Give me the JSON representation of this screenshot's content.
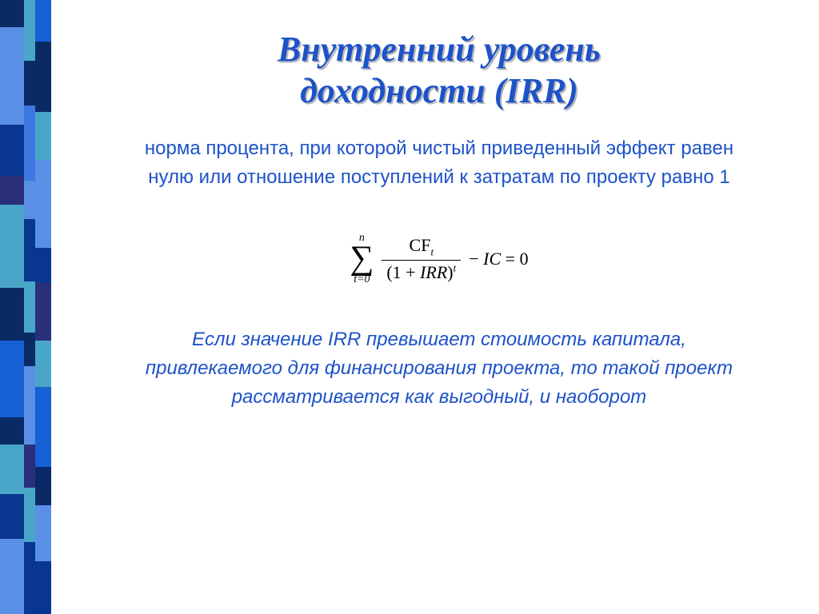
{
  "sidebar": {
    "columns": [
      {
        "width": 30,
        "blocks": [
          {
            "h": 34,
            "c": "#0a2a66"
          },
          {
            "h": 122,
            "c": "#5a8fe6"
          },
          {
            "h": 64,
            "c": "#093690"
          },
          {
            "h": 36,
            "c": "#2a2f7a"
          },
          {
            "h": 104,
            "c": "#4aa6c9"
          },
          {
            "h": 66,
            "c": "#0a2a66"
          },
          {
            "h": 96,
            "c": "#1760d6"
          },
          {
            "h": 34,
            "c": "#0a2a66"
          },
          {
            "h": 62,
            "c": "#4aa6c9"
          },
          {
            "h": 56,
            "c": "#093690"
          },
          {
            "h": 94,
            "c": "#5a8fe6"
          }
        ]
      },
      {
        "width": 14,
        "blocks": [
          {
            "h": 76,
            "c": "#4aa6c9"
          },
          {
            "h": 56,
            "c": "#0a2a66"
          },
          {
            "h": 94,
            "c": "#3d78e0"
          },
          {
            "h": 48,
            "c": "#5a8fe6"
          },
          {
            "h": 78,
            "c": "#093690"
          },
          {
            "h": 64,
            "c": "#4aa6c9"
          },
          {
            "h": 42,
            "c": "#0a2a66"
          },
          {
            "h": 98,
            "c": "#5a8fe6"
          },
          {
            "h": 54,
            "c": "#2a2f7a"
          },
          {
            "h": 68,
            "c": "#4aa6c9"
          },
          {
            "h": 90,
            "c": "#093690"
          }
        ]
      },
      {
        "width": 20,
        "blocks": [
          {
            "h": 52,
            "c": "#1760d6"
          },
          {
            "h": 88,
            "c": "#0a2a66"
          },
          {
            "h": 60,
            "c": "#4aa6c9"
          },
          {
            "h": 110,
            "c": "#5a8fe6"
          },
          {
            "h": 44,
            "c": "#093690"
          },
          {
            "h": 72,
            "c": "#2a2f7a"
          },
          {
            "h": 58,
            "c": "#4aa6c9"
          },
          {
            "h": 100,
            "c": "#1760d6"
          },
          {
            "h": 48,
            "c": "#0a2a66"
          },
          {
            "h": 70,
            "c": "#5a8fe6"
          },
          {
            "h": 66,
            "c": "#093690"
          }
        ]
      }
    ]
  },
  "title": {
    "line1": "Внутренний уровень",
    "line2": "доходности (IRR)",
    "fontsize": 44,
    "color": "#1d52c9",
    "shadow": "#b8b8b8"
  },
  "definition": {
    "text": "норма процента, при которой чистый приведенный эффект равен нулю или отношение поступлений к затратам по проекту равно 1",
    "fontsize": 24,
    "color": "#1d52c9"
  },
  "formula": {
    "type": "equation",
    "sigma_upper": "n",
    "sigma_lower_var": "t",
    "sigma_lower_eq": "=0",
    "numerator_main": "CF",
    "numerator_sub": "t",
    "denom_open": "(1 + ",
    "denom_var": "IRR",
    "denom_close": ")",
    "denom_exp": "t",
    "tail_minus": " − ",
    "tail_var": "IC",
    "tail_eq": " = 0",
    "color": "#000000"
  },
  "interpretation": {
    "text": "Если значение IRR превышает стоимость капитала, привлекаемого для финансирования проекта, то такой проект рассматривается как выгодный, и наоборот",
    "fontsize": 24,
    "color": "#1d52c9"
  }
}
